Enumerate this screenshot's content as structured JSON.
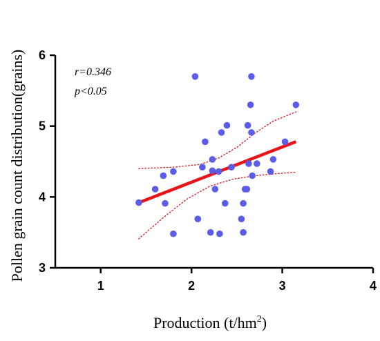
{
  "chart_data": {
    "type": "scatter",
    "xlabel": "Production (t/hm",
    "xlabel_superscript": "2",
    "xlabel_suffix": ")",
    "ylabel": "Pollen grain count distribution(grains)",
    "xlim": [
      0.5,
      4
    ],
    "ylim": [
      3,
      6
    ],
    "xticks": [
      "1",
      "2",
      "3",
      "4"
    ],
    "yticks": [
      "3",
      "4",
      "5",
      "6"
    ],
    "grid": false,
    "annotations": {
      "r": "r=0.346",
      "p": "p<0.05"
    },
    "point_color": "#5b5ce8",
    "fit_color": "#e8141a",
    "ci_color": "#d6202a",
    "points": [
      {
        "x": 1.42,
        "y": 3.92
      },
      {
        "x": 1.6,
        "y": 4.11
      },
      {
        "x": 1.69,
        "y": 4.3
      },
      {
        "x": 1.71,
        "y": 3.91
      },
      {
        "x": 1.8,
        "y": 4.36
      },
      {
        "x": 1.8,
        "y": 3.48
      },
      {
        "x": 2.04,
        "y": 5.7
      },
      {
        "x": 2.07,
        "y": 3.69
      },
      {
        "x": 2.12,
        "y": 4.42
      },
      {
        "x": 2.15,
        "y": 4.78
      },
      {
        "x": 2.21,
        "y": 3.5
      },
      {
        "x": 2.23,
        "y": 4.53
      },
      {
        "x": 2.23,
        "y": 4.37
      },
      {
        "x": 2.26,
        "y": 4.11
      },
      {
        "x": 2.3,
        "y": 4.36
      },
      {
        "x": 2.31,
        "y": 3.48
      },
      {
        "x": 2.33,
        "y": 4.91
      },
      {
        "x": 2.37,
        "y": 3.91
      },
      {
        "x": 2.39,
        "y": 5.01
      },
      {
        "x": 2.44,
        "y": 4.42
      },
      {
        "x": 2.55,
        "y": 3.69
      },
      {
        "x": 2.57,
        "y": 3.91
      },
      {
        "x": 2.57,
        "y": 3.5
      },
      {
        "x": 2.59,
        "y": 4.11
      },
      {
        "x": 2.61,
        "y": 4.11
      },
      {
        "x": 2.62,
        "y": 5.01
      },
      {
        "x": 2.63,
        "y": 4.47
      },
      {
        "x": 2.65,
        "y": 5.3
      },
      {
        "x": 2.66,
        "y": 5.7
      },
      {
        "x": 2.66,
        "y": 4.91
      },
      {
        "x": 2.67,
        "y": 4.3
      },
      {
        "x": 2.72,
        "y": 4.47
      },
      {
        "x": 2.87,
        "y": 4.36
      },
      {
        "x": 2.9,
        "y": 4.53
      },
      {
        "x": 3.03,
        "y": 4.78
      },
      {
        "x": 3.15,
        "y": 5.3
      }
    ],
    "fit_line": {
      "x": [
        1.42,
        3.15
      ],
      "y": [
        3.92,
        4.78
      ]
    },
    "ci_upper": [
      {
        "x": 1.42,
        "y": 4.4
      },
      {
        "x": 1.8,
        "y": 4.42
      },
      {
        "x": 2.1,
        "y": 4.46
      },
      {
        "x": 2.3,
        "y": 4.55
      },
      {
        "x": 2.5,
        "y": 4.7
      },
      {
        "x": 2.7,
        "y": 4.9
      },
      {
        "x": 2.9,
        "y": 5.07
      },
      {
        "x": 3.15,
        "y": 5.2
      }
    ],
    "ci_lower": [
      {
        "x": 1.42,
        "y": 3.41
      },
      {
        "x": 1.7,
        "y": 3.72
      },
      {
        "x": 1.95,
        "y": 3.97
      },
      {
        "x": 2.2,
        "y": 4.15
      },
      {
        "x": 2.45,
        "y": 4.25
      },
      {
        "x": 2.7,
        "y": 4.3
      },
      {
        "x": 2.95,
        "y": 4.33
      },
      {
        "x": 3.15,
        "y": 4.35
      }
    ]
  }
}
